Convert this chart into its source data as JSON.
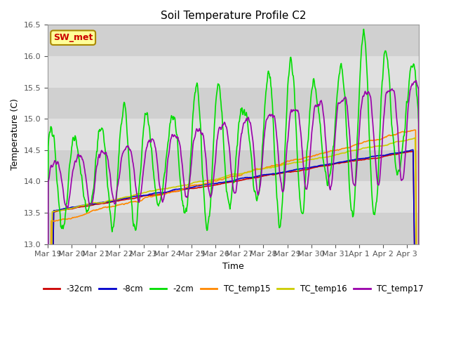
{
  "title": "Soil Temperature Profile C2",
  "xlabel": "Time",
  "ylabel": "Temperature (C)",
  "ylim": [
    13.0,
    16.5
  ],
  "yticks": [
    13.0,
    13.5,
    14.0,
    14.5,
    15.0,
    15.5,
    16.0,
    16.5
  ],
  "fig_bg_color": "#ffffff",
  "plot_bg_color": "#d8d8d8",
  "annotation_text": "SW_met",
  "annotation_bg": "#ffff99",
  "annotation_border": "#aa8800",
  "annotation_fg": "#cc0000",
  "series": {
    "-32cm": {
      "color": "#cc0000",
      "lw": 1.2
    },
    "-8cm": {
      "color": "#0000cc",
      "lw": 1.2
    },
    "-2cm": {
      "color": "#00dd00",
      "lw": 1.2
    },
    "TC_temp15": {
      "color": "#ff8800",
      "lw": 1.2
    },
    "TC_temp16": {
      "color": "#cccc00",
      "lw": 1.2
    },
    "TC_temp17": {
      "color": "#9900aa",
      "lw": 1.2
    }
  },
  "legend_colors": [
    "#cc0000",
    "#0000cc",
    "#00dd00",
    "#ff8800",
    "#cccc00",
    "#9900aa"
  ],
  "legend_labels": [
    "-32cm",
    "-8cm",
    "-2cm",
    "TC_temp15",
    "TC_temp16",
    "TC_temp17"
  ]
}
